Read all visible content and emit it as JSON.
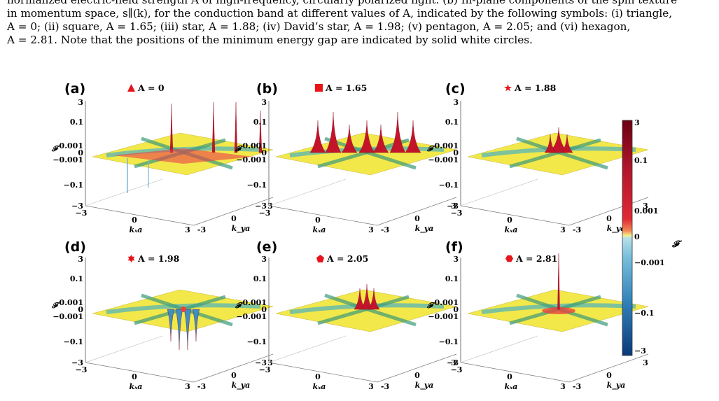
{
  "caption": {
    "line0": "normalized electric-field strength A of high-frequency, circularly polarized light. (b) In-plane components of the spin texture",
    "line1": "in momentum space, s∥(k), for the conduction band at different values of A, indicated by the following symbols: (i) triangle,",
    "line2": "A = 0; (ii) square, A = 1.65; (iii) star, A = 1.88; (iv) David’s star, A = 1.98; (v) pentagon, A = 2.05; and (vi) hexagon,",
    "line3": "A = 2.81. Note that the positions of the minimum energy gap are indicated by solid white circles."
  },
  "axes": {
    "z_ticks": [
      "3",
      "0.1",
      "0.001",
      "0",
      "−0.001",
      "−0.1",
      "−3"
    ],
    "z_label": "𝓕",
    "x_ticks": [
      "−3",
      "0",
      "3"
    ],
    "x_label": "kₓa",
    "y_ticks": [
      "-3",
      "0",
      "3"
    ],
    "y_label": "k_ya"
  },
  "panels": [
    {
      "label": "(a)",
      "title": "A = 0",
      "symbol": "triangle",
      "color": "#e8141b"
    },
    {
      "label": "(b)",
      "title": "A = 1.65",
      "symbol": "square",
      "color": "#e8141b"
    },
    {
      "label": "(c)",
      "title": "A = 1.88",
      "symbol": "star",
      "color": "#e8141b"
    },
    {
      "label": "(d)",
      "title": "A = 1.98",
      "symbol": "david-star",
      "color": "#e8141b"
    },
    {
      "label": "(e)",
      "title": "A = 2.05",
      "symbol": "pentagon",
      "color": "#e8141b"
    },
    {
      "label": "(f)",
      "title": "A = 2.81",
      "symbol": "hexagon",
      "color": "#e8141b"
    }
  ],
  "colorbar": {
    "ticks": [
      "3",
      "0.1",
      "0.001",
      "0",
      "−0.001",
      "−0.1",
      "−3"
    ],
    "label": "𝓕",
    "colors": [
      "#6b0012",
      "#c4142a",
      "#e8443f",
      "#f3f08a",
      "#9fd3e6",
      "#3c8fc2",
      "#0a3a78"
    ]
  }
}
